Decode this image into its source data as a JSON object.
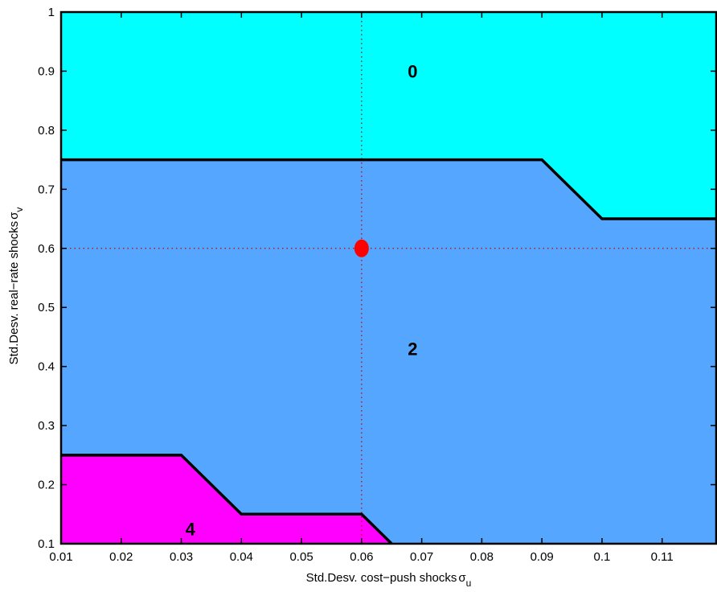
{
  "chart_data": {
    "type": "area",
    "xlabel": "Std.Desv. cost−push shocks",
    "xlabel_symbol": "σ",
    "xlabel_subscript": "u",
    "ylabel": "Std.Desv. real−rate shocks",
    "ylabel_symbol": "σ",
    "ylabel_subscript": "v",
    "xlim": [
      0.01,
      0.119
    ],
    "ylim": [
      0.1,
      1.0
    ],
    "xticks": [
      0.01,
      0.02,
      0.03,
      0.04,
      0.05,
      0.06,
      0.07,
      0.08,
      0.09,
      0.1,
      0.11
    ],
    "xtick_labels": [
      "0.01",
      "0.02",
      "0.03",
      "0.04",
      "0.05",
      "0.06",
      "0.07",
      "0.08",
      "0.09",
      "0.1",
      "0.11"
    ],
    "yticks": [
      0.1,
      0.2,
      0.3,
      0.4,
      0.5,
      0.6,
      0.7,
      0.8,
      0.9,
      1.0
    ],
    "ytick_labels": [
      "0.1",
      "0.2",
      "0.3",
      "0.4",
      "0.5",
      "0.6",
      "0.7",
      "0.8",
      "0.9",
      "1"
    ],
    "grid": false,
    "regions": [
      {
        "label": "0",
        "color": "#00ffff",
        "label_at": [
          0.0685,
          0.9
        ]
      },
      {
        "label": "2",
        "color": "#55a6ff",
        "label_at": [
          0.0685,
          0.43
        ]
      },
      {
        "label": "4",
        "color": "#ff00ff",
        "label_at": [
          0.0315,
          0.125
        ]
      }
    ],
    "boundaries": [
      {
        "name": "upper",
        "x": [
          0.01,
          0.09,
          0.1,
          0.119
        ],
        "y": [
          0.75,
          0.75,
          0.65,
          0.65
        ]
      },
      {
        "name": "lower",
        "x": [
          0.01,
          0.03,
          0.04,
          0.06,
          0.065
        ],
        "y": [
          0.25,
          0.25,
          0.15,
          0.15,
          0.1
        ]
      }
    ],
    "boundary_color": "#000000",
    "reference_point": {
      "x": 0.06,
      "y": 0.6,
      "color": "#ff0000"
    },
    "reference_line_color": "#cc0000"
  }
}
